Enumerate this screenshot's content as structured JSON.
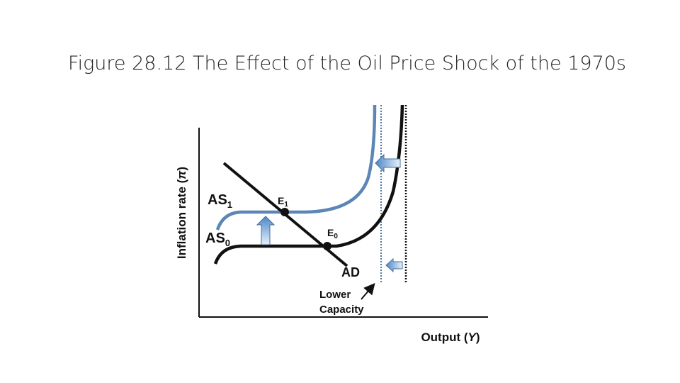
{
  "header": {
    "title": "Figure 28.12 The Effect of the Oil Price Shock of the 1970s"
  },
  "diagram": {
    "y_axis_label": {
      "before": "Inflation rate (",
      "symbol": "π",
      "after": ")"
    },
    "x_axis_label": {
      "before": "Output (",
      "symbol": "Y",
      "after": ")"
    },
    "curves": {
      "as1": {
        "main": "AS",
        "sub": "1"
      },
      "as0": {
        "main": "AS",
        "sub": "0"
      },
      "ad": "AD"
    },
    "points": {
      "e1": {
        "main": "E",
        "sub": "1"
      },
      "e0": {
        "main": "E",
        "sub": "0"
      }
    },
    "annotation": {
      "line1": "Lower",
      "line2": "Capacity"
    }
  }
}
